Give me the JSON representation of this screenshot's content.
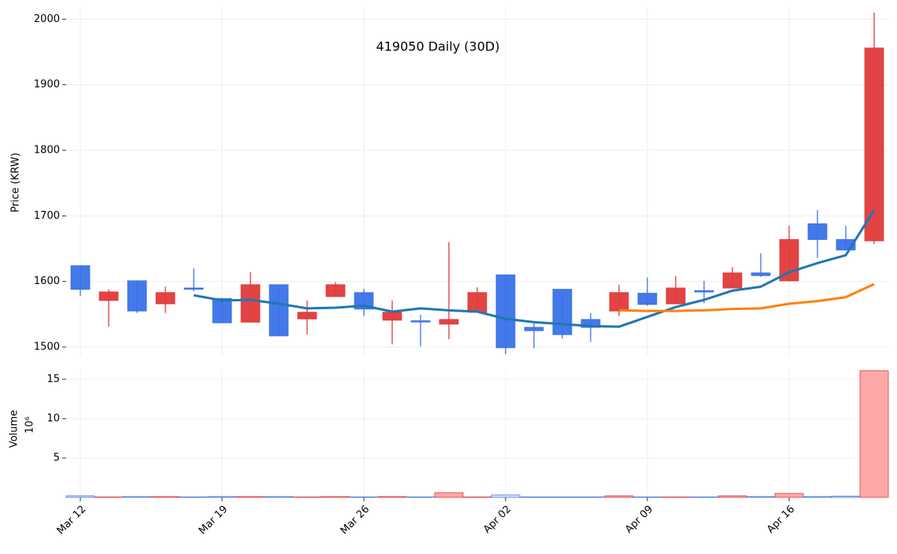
{
  "chart_data": [
    {
      "type": "candlestick",
      "title": "419050 Daily (30D)",
      "y_label": "Price (KRW)",
      "open": [
        1624,
        1571,
        1601,
        1566,
        1590,
        1574,
        1538,
        1595,
        1543,
        1577,
        1583,
        1541,
        1540,
        1535,
        1553,
        1610,
        1530,
        1588,
        1542,
        1555,
        1582,
        1566,
        1586,
        1590,
        1613,
        1601,
        1688,
        1664,
        1662
      ],
      "high": [
        1624,
        1588,
        1601,
        1592,
        1620,
        1575,
        1614,
        1595,
        1571,
        1599,
        1589,
        1571,
        1549,
        1660,
        1591,
        1610,
        1537,
        1588,
        1552,
        1595,
        1606,
        1608,
        1601,
        1622,
        1643,
        1685,
        1709,
        1685,
        2010
      ],
      "low": [
        1578,
        1531,
        1552,
        1552,
        1585,
        1537,
        1538,
        1517,
        1519,
        1577,
        1547,
        1504,
        1501,
        1512,
        1553,
        1489,
        1498,
        1513,
        1508,
        1547,
        1563,
        1566,
        1567,
        1590,
        1607,
        1600,
        1636,
        1648,
        1657
      ],
      "close": [
        1588,
        1584,
        1555,
        1583,
        1589,
        1537,
        1595,
        1517,
        1553,
        1595,
        1558,
        1553,
        1539,
        1542,
        1583,
        1499,
        1525,
        1519,
        1530,
        1583,
        1565,
        1590,
        1584,
        1613,
        1609,
        1664,
        1664,
        1648,
        1956
      ],
      "up_color": "#e03a3a",
      "down_color": "#3a72e8",
      "series": [
        {
          "color": "#1f77b4",
          "values": [
            null,
            null,
            null,
            null,
            1579,
            1571,
            1572,
            1566,
            1559,
            1560,
            1563,
            1554,
            1559,
            1556,
            1554,
            1543,
            1538,
            1535,
            1532,
            1531,
            1546,
            1561,
            1572,
            1586,
            1592,
            1614,
            1628,
            1640,
            1709
          ]
        },
        {
          "color": "#ff7f0e",
          "values": [
            null,
            null,
            null,
            null,
            null,
            null,
            null,
            null,
            null,
            null,
            null,
            null,
            null,
            null,
            null,
            null,
            null,
            null,
            null,
            1556,
            1555,
            1555,
            1556,
            1558,
            1559,
            1566,
            1570,
            1576,
            1596
          ]
        }
      ],
      "ylim": [
        1485,
        2017
      ],
      "yticks": [
        1500,
        1600,
        1700,
        1800,
        1900,
        2000
      ],
      "grid": true
    },
    {
      "type": "bar",
      "y_label": "Volume",
      "y_unit_label": "10⁶",
      "categories": [
        "Mar 12",
        null,
        null,
        null,
        null,
        "Mar 19",
        null,
        null,
        null,
        null,
        "Mar 26",
        null,
        null,
        null,
        null,
        "Apr 02",
        null,
        null,
        null,
        null,
        "Apr 09",
        null,
        null,
        null,
        null,
        "Apr 16",
        null,
        null,
        null
      ],
      "values": [
        0.2,
        0.05,
        0.1,
        0.1,
        0.05,
        0.1,
        0.1,
        0.1,
        0.05,
        0.1,
        0.05,
        0.1,
        0.05,
        0.6,
        0.05,
        0.3,
        0.05,
        0.05,
        0.05,
        0.2,
        0.05,
        0.05,
        0.05,
        0.2,
        0.1,
        0.5,
        0.1,
        0.15,
        16.1
      ],
      "up_color": "#ffa8a8",
      "up_edge": "#e03a3a",
      "down_color": "#dce8ff",
      "down_edge": "#3a72e8",
      "ylim": [
        0,
        16.2
      ],
      "yticks": [
        5,
        10,
        15
      ],
      "grid": true
    }
  ]
}
